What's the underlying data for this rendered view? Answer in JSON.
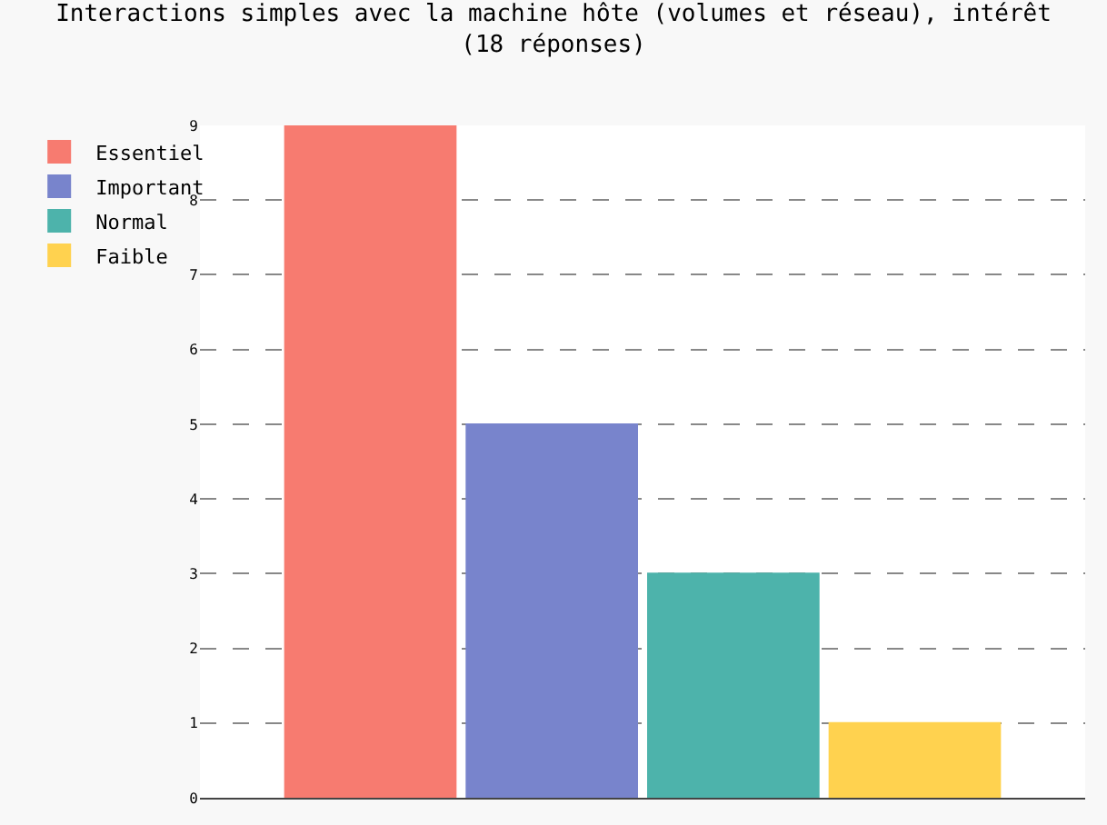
{
  "chart_data": {
    "type": "bar",
    "title": "Interactions simples avec la machine hôte (volumes et réseau), intérêt\n(18 réponses)",
    "categories": [
      null
    ],
    "series": [
      {
        "name": "Essentiel",
        "color": "#f77b70",
        "values": [
          9
        ]
      },
      {
        "name": "Important",
        "color": "#7884cc",
        "values": [
          5
        ]
      },
      {
        "name": "Normal",
        "color": "#4db3ab",
        "values": [
          3
        ]
      },
      {
        "name": "Faible",
        "color": "#ffd24f",
        "values": [
          1
        ]
      }
    ],
    "ylim": [
      0,
      9
    ],
    "yticks": [
      0,
      1,
      2,
      3,
      4,
      5,
      6,
      7,
      8,
      9
    ],
    "grid": "y",
    "legend": "top left"
  }
}
